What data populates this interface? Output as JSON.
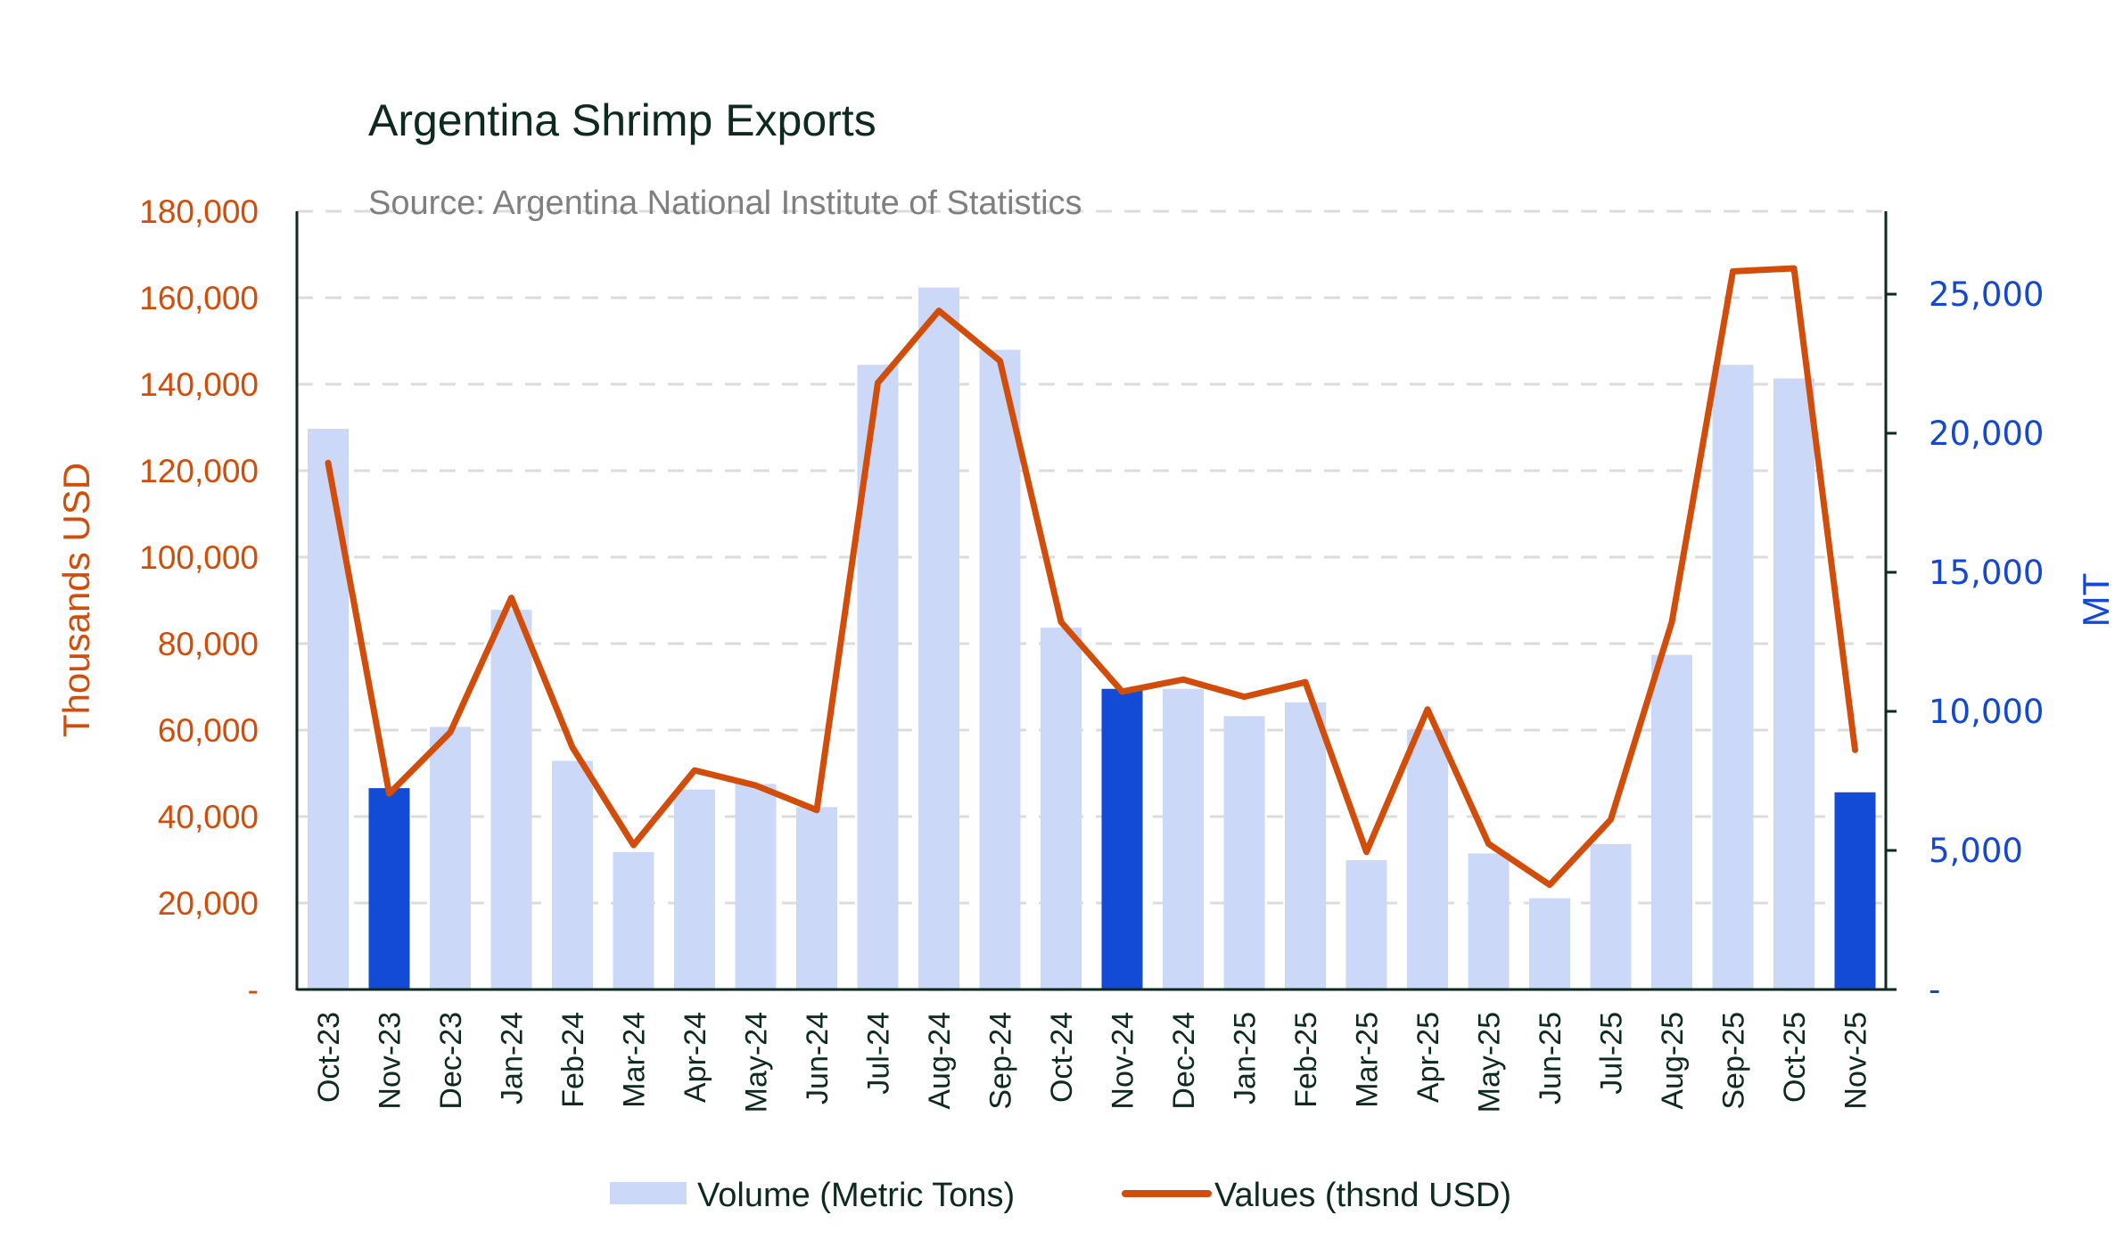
{
  "chart_data": {
    "type": "bar+line",
    "title": "Argentina Shrimp Exports",
    "subtitle": "Source: Argentina National Institute of Statistics",
    "categories": [
      "Oct-23",
      "Nov-23",
      "Dec-23",
      "Jan-24",
      "Feb-24",
      "Mar-24",
      "Apr-24",
      "May-24",
      "Jun-24",
      "Jul-24",
      "Aug-24",
      "Sep-24",
      "Oct-24",
      "Nov-24",
      "Dec-24",
      "Jan-25",
      "Feb-25",
      "Mar-25",
      "Apr-25",
      "May-25",
      "Jun-25",
      "Jul-25",
      "Aug-25",
      "Sep-25",
      "Oct-25",
      "Nov-25"
    ],
    "highlighted_categories": [
      "Nov-23",
      "Nov-24",
      "Nov-25"
    ],
    "series": [
      {
        "name": "Volume (Metric Tons)",
        "type": "bar",
        "axis": "right",
        "color": "#cbd8f8",
        "highlight_color": "#144bd6",
        "values": [
          20160,
          7240,
          9440,
          13650,
          8220,
          4940,
          7190,
          7390,
          6560,
          22460,
          25240,
          23000,
          13010,
          10810,
          10810,
          9830,
          10320,
          4650,
          9340,
          4890,
          3280,
          5230,
          12030,
          22460,
          21970,
          7090
        ]
      },
      {
        "name": "Values (thsnd USD)",
        "type": "line",
        "axis": "left",
        "color": "#d14d09",
        "values": [
          121800,
          45300,
          59500,
          90600,
          56000,
          33400,
          50700,
          47200,
          41500,
          140300,
          157000,
          145400,
          85000,
          68900,
          71700,
          67700,
          71100,
          31800,
          64800,
          33700,
          24200,
          39300,
          85000,
          166100,
          166800,
          55400
        ]
      }
    ],
    "y_left": {
      "label": "Thousands USD",
      "range": [
        0,
        180000
      ],
      "ticks": [
        0,
        20000,
        40000,
        60000,
        80000,
        100000,
        120000,
        140000,
        160000,
        180000
      ],
      "tick_labels": [
        "-",
        "20,000",
        "40,000",
        "60,000",
        "80,000",
        "100,000",
        "120,000",
        "140,000",
        "160,000",
        "180,000"
      ],
      "color": "#d14d09"
    },
    "y_right": {
      "label": "MT",
      "range": [
        0,
        28000
      ],
      "ticks": [
        0,
        5000,
        10000,
        15000,
        20000,
        25000
      ],
      "tick_labels": [
        "-",
        "5,000",
        "10,000",
        "15,000",
        "20,000",
        "25,000"
      ],
      "color": "#1448d2"
    },
    "grid": true,
    "legend": {
      "position": "bottom-center",
      "entries": [
        "Volume (Metric Tons)",
        "Values (thsnd USD)"
      ]
    }
  }
}
